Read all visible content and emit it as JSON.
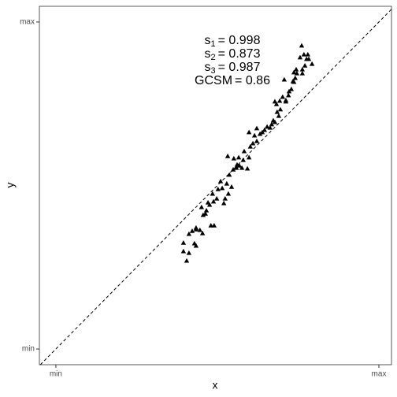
{
  "chart_data": {
    "type": "scatter",
    "xlabel": "x",
    "ylabel": "y",
    "xlim": [
      -0.051,
      1.039
    ],
    "ylim": [
      -0.048,
      1.048
    ],
    "xticks": [
      {
        "value": 0,
        "label": "min"
      },
      {
        "value": 1,
        "label": "max"
      }
    ],
    "yticks": [
      {
        "value": 0,
        "label": "min"
      },
      {
        "value": 1,
        "label": "max"
      }
    ],
    "identity_line": true,
    "grid": false,
    "color": "#000000",
    "annotations": [
      {
        "symbol": "s",
        "subscript": "1",
        "text": "= 0.998"
      },
      {
        "symbol": "s",
        "subscript": "2",
        "text": "= 0.873"
      },
      {
        "symbol": "s",
        "subscript": "3",
        "text": "= 0.987"
      },
      {
        "symbol": "GCSM",
        "text": "= 0.86"
      }
    ],
    "x": [
      0.405,
      0.395,
      0.412,
      0.395,
      0.429,
      0.434,
      0.412,
      0.422,
      0.434,
      0.446,
      0.454,
      0.434,
      0.48,
      0.49,
      0.456,
      0.466,
      0.463,
      0.476,
      0.451,
      0.471,
      0.488,
      0.498,
      0.485,
      0.502,
      0.515,
      0.524,
      0.52,
      0.534,
      0.51,
      0.529,
      0.544,
      0.537,
      0.549,
      0.559,
      0.568,
      0.561,
      0.576,
      0.593,
      0.58,
      0.566,
      0.551,
      0.532,
      0.598,
      0.583,
      0.602,
      0.61,
      0.622,
      0.615,
      0.598,
      0.622,
      0.632,
      0.639,
      0.646,
      0.654,
      0.663,
      0.668,
      0.673,
      0.678,
      0.685,
      0.69,
      0.695,
      0.683,
      0.678,
      0.693,
      0.702,
      0.712,
      0.72,
      0.722,
      0.729,
      0.737,
      0.741,
      0.737,
      0.746,
      0.744,
      0.763,
      0.763,
      0.756,
      0.771,
      0.776,
      0.768,
      0.78,
      0.783,
      0.793,
      0.761,
      0.707,
      0.734,
      0.712
    ],
    "y": [
      0.27,
      0.299,
      0.294,
      0.325,
      0.323,
      0.316,
      0.352,
      0.361,
      0.366,
      0.364,
      0.354,
      0.371,
      0.378,
      0.378,
      0.41,
      0.424,
      0.414,
      0.441,
      0.434,
      0.448,
      0.451,
      0.46,
      0.475,
      0.489,
      0.492,
      0.46,
      0.446,
      0.475,
      0.513,
      0.506,
      0.496,
      0.533,
      0.549,
      0.554,
      0.561,
      0.564,
      0.554,
      0.552,
      0.578,
      0.586,
      0.583,
      0.59,
      0.586,
      0.605,
      0.619,
      0.629,
      0.636,
      0.653,
      0.663,
      0.675,
      0.658,
      0.663,
      0.67,
      0.68,
      0.677,
      0.687,
      0.699,
      0.694,
      0.725,
      0.713,
      0.733,
      0.749,
      0.757,
      0.759,
      0.771,
      0.761,
      0.776,
      0.788,
      0.795,
      0.817,
      0.829,
      0.846,
      0.843,
      0.855,
      0.843,
      0.855,
      0.892,
      0.867,
      0.887,
      0.901,
      0.901,
      0.887,
      0.872,
      0.928,
      0.824,
      0.819,
      0.757
    ]
  }
}
